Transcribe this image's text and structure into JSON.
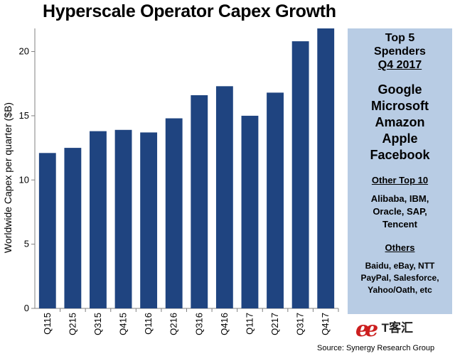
{
  "chart_data": {
    "type": "bar",
    "title": "Hyperscale Operator Capex Growth",
    "ylabel": "Worldwide Capex per quarter ($B)",
    "categories": [
      "Q115",
      "Q215",
      "Q315",
      "Q415",
      "Q116",
      "Q216",
      "Q316",
      "Q416",
      "Q117",
      "Q217",
      "Q317",
      "Q417"
    ],
    "values": [
      12.1,
      12.5,
      13.8,
      13.9,
      13.7,
      14.8,
      16.6,
      17.3,
      15.0,
      16.8,
      20.8,
      21.8
    ],
    "ylim": [
      0,
      21.8
    ],
    "yticks": [
      "0",
      "5",
      "10",
      "15",
      "20"
    ],
    "bar_color": "#1f4480",
    "grid": false
  },
  "sidebar": {
    "heading_line1": "Top 5",
    "heading_line2": "Spenders",
    "heading_line3": "Q4 2017",
    "top5": [
      "Google",
      "Microsoft",
      "Amazon",
      "Apple",
      "Facebook"
    ],
    "other_heading": "Other Top 10",
    "other_line1": "Alibaba, IBM,",
    "other_line2": "Oracle, SAP,",
    "other_line3": "Tencent",
    "others_heading": "Others",
    "others_line1": "Baidu, eBay, NTT",
    "others_line2": "PayPal, Salesforce,",
    "others_line3": "Yahoo/Oath, etc",
    "background": "#b8cce4"
  },
  "logo": {
    "mark": "ee",
    "brand": "T客汇"
  },
  "source": "Source: Synergy Research Group"
}
